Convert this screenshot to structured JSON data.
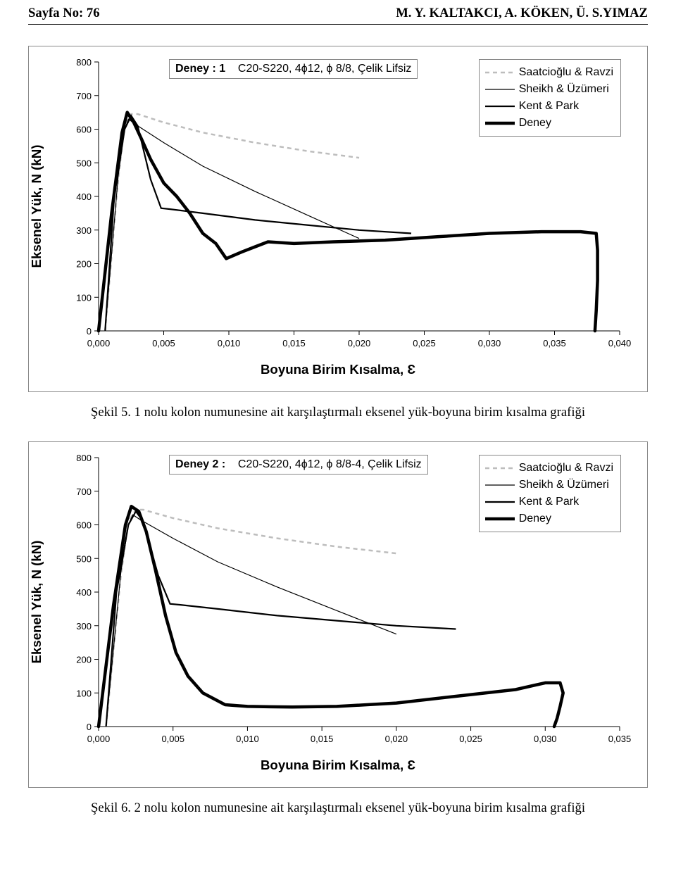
{
  "header": {
    "page_no_label": "Sayfa No: 76",
    "authors": "M. Y. KALTAKCI, A. KÖKEN, Ü. S.YIMAZ"
  },
  "header_fontsize_pt": 14,
  "caption_fontsize_pt": 14,
  "axis_label_fontsize_pt": 14,
  "tick_fontsize_pt": 13,
  "legend_fontsize_pt": 12,
  "title_strip_fontsize_pt": 12,
  "colors": {
    "page_bg": "#ffffff",
    "text": "#000000",
    "frame_border": "#888888",
    "series_saatcioglu": "#bdbdbd",
    "series_sheikh": "#000000",
    "series_kentpark": "#000000",
    "series_deney": "#000000"
  },
  "line_widths": {
    "saatcioglu": 2.5,
    "sheikh": 1.2,
    "kentpark": 2.2,
    "deney": 4.5
  },
  "dash_patterns": {
    "saatcioglu": "6 5",
    "sheikh": "none",
    "kentpark": "none",
    "deney": "none"
  },
  "legend": {
    "saatcioglu": "Saatcioğlu & Ravzi",
    "sheikh": "Sheikh & Üzümeri",
    "kentpark": "Kent & Park",
    "deney": "Deney"
  },
  "chart1": {
    "type": "line",
    "title_prefix": "Deney : 1",
    "title_rest": "C20-S220, 4ϕ12, ϕ 8/8, Çelik Lifsiz",
    "ylabel": "Eksenel Yük, N (kN)",
    "xlabel": "Boyuna Birim Kısalma, Ɛ",
    "xlim": [
      0.0,
      0.04
    ],
    "ylim": [
      0,
      800
    ],
    "xticks": [
      "0,000",
      "0,005",
      "0,010",
      "0,015",
      "0,020",
      "0,025",
      "0,030",
      "0,035",
      "0,040"
    ],
    "yticks": [
      "0",
      "100",
      "200",
      "300",
      "400",
      "500",
      "600",
      "700",
      "800"
    ],
    "series": {
      "saatcioglu": [
        [
          0.0005,
          0
        ],
        [
          0.0015,
          450
        ],
        [
          0.002,
          610
        ],
        [
          0.0025,
          645
        ],
        [
          0.003,
          645
        ],
        [
          0.005,
          620
        ],
        [
          0.008,
          590
        ],
        [
          0.012,
          560
        ],
        [
          0.016,
          535
        ],
        [
          0.02,
          515
        ]
      ],
      "sheikh": [
        [
          0.0005,
          0
        ],
        [
          0.0015,
          460
        ],
        [
          0.002,
          600
        ],
        [
          0.0023,
          630
        ],
        [
          0.0028,
          615
        ],
        [
          0.005,
          560
        ],
        [
          0.008,
          490
        ],
        [
          0.012,
          415
        ],
        [
          0.016,
          345
        ],
        [
          0.02,
          275
        ]
      ],
      "kentpark": [
        [
          0.0005,
          0
        ],
        [
          0.0012,
          400
        ],
        [
          0.002,
          600
        ],
        [
          0.0025,
          640
        ],
        [
          0.003,
          610
        ],
        [
          0.004,
          450
        ],
        [
          0.0048,
          365
        ],
        [
          0.0055,
          362
        ],
        [
          0.008,
          350
        ],
        [
          0.012,
          330
        ],
        [
          0.016,
          315
        ],
        [
          0.02,
          300
        ],
        [
          0.024,
          290
        ]
      ],
      "deney": [
        [
          0.0,
          0
        ],
        [
          0.001,
          350
        ],
        [
          0.0018,
          590
        ],
        [
          0.0022,
          650
        ],
        [
          0.0027,
          620
        ],
        [
          0.0033,
          570
        ],
        [
          0.004,
          510
        ],
        [
          0.005,
          440
        ],
        [
          0.006,
          400
        ],
        [
          0.007,
          350
        ],
        [
          0.008,
          290
        ],
        [
          0.009,
          260
        ],
        [
          0.0098,
          215
        ],
        [
          0.011,
          235
        ],
        [
          0.012,
          250
        ],
        [
          0.013,
          265
        ],
        [
          0.015,
          260
        ],
        [
          0.018,
          265
        ],
        [
          0.022,
          270
        ],
        [
          0.026,
          280
        ],
        [
          0.03,
          290
        ],
        [
          0.034,
          295
        ],
        [
          0.037,
          295
        ],
        [
          0.0382,
          290
        ],
        [
          0.0383,
          240
        ],
        [
          0.0383,
          150
        ],
        [
          0.0382,
          60
        ],
        [
          0.0381,
          0
        ]
      ]
    }
  },
  "caption1": "Şekil 5. 1 nolu kolon numunesine ait karşılaştırmalı eksenel yük-boyuna birim kısalma grafiği",
  "chart2": {
    "type": "line",
    "title_prefix": "Deney 2 :",
    "title_rest": "C20-S220, 4ϕ12, ϕ 8/8-4, Çelik Lifsiz",
    "ylabel": "Eksenel Yük, N (kN)",
    "xlabel": "Boyuna Birim Kısalma, Ɛ",
    "xlim": [
      0.0,
      0.035
    ],
    "ylim": [
      0,
      800
    ],
    "xticks": [
      "0,000",
      "0,005",
      "0,010",
      "0,015",
      "0,020",
      "0,025",
      "0,030",
      "0,035"
    ],
    "yticks": [
      "0",
      "100",
      "200",
      "300",
      "400",
      "500",
      "600",
      "700",
      "800"
    ],
    "series": {
      "saatcioglu": [
        [
          0.0005,
          0
        ],
        [
          0.0015,
          450
        ],
        [
          0.002,
          610
        ],
        [
          0.0025,
          645
        ],
        [
          0.003,
          645
        ],
        [
          0.005,
          620
        ],
        [
          0.008,
          590
        ],
        [
          0.012,
          560
        ],
        [
          0.016,
          535
        ],
        [
          0.02,
          515
        ]
      ],
      "sheikh": [
        [
          0.0005,
          0
        ],
        [
          0.0015,
          460
        ],
        [
          0.002,
          600
        ],
        [
          0.0023,
          630
        ],
        [
          0.0028,
          615
        ],
        [
          0.005,
          560
        ],
        [
          0.008,
          490
        ],
        [
          0.012,
          415
        ],
        [
          0.016,
          345
        ],
        [
          0.02,
          275
        ]
      ],
      "kentpark": [
        [
          0.0005,
          0
        ],
        [
          0.0012,
          400
        ],
        [
          0.002,
          600
        ],
        [
          0.0025,
          640
        ],
        [
          0.003,
          610
        ],
        [
          0.004,
          450
        ],
        [
          0.0048,
          365
        ],
        [
          0.0055,
          362
        ],
        [
          0.008,
          350
        ],
        [
          0.012,
          330
        ],
        [
          0.016,
          315
        ],
        [
          0.02,
          300
        ],
        [
          0.024,
          290
        ]
      ],
      "deney": [
        [
          0.0,
          0
        ],
        [
          0.001,
          360
        ],
        [
          0.0018,
          600
        ],
        [
          0.0022,
          655
        ],
        [
          0.0027,
          640
        ],
        [
          0.0032,
          580
        ],
        [
          0.0038,
          470
        ],
        [
          0.0045,
          330
        ],
        [
          0.0052,
          220
        ],
        [
          0.006,
          150
        ],
        [
          0.007,
          100
        ],
        [
          0.0085,
          65
        ],
        [
          0.01,
          60
        ],
        [
          0.013,
          58
        ],
        [
          0.016,
          60
        ],
        [
          0.02,
          70
        ],
        [
          0.024,
          90
        ],
        [
          0.028,
          110
        ],
        [
          0.03,
          130
        ],
        [
          0.031,
          130
        ],
        [
          0.0312,
          100
        ],
        [
          0.031,
          60
        ],
        [
          0.0308,
          25
        ],
        [
          0.0306,
          0
        ]
      ]
    }
  },
  "caption2": "Şekil 6. 2 nolu kolon numunesine ait karşılaştırmalı eksenel yük-boyuna birim kısalma grafiği"
}
